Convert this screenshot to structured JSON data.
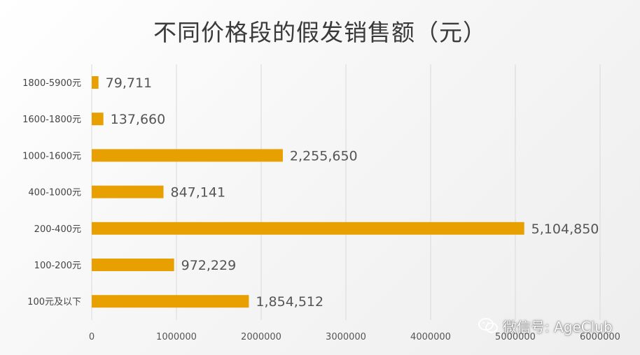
{
  "chart_data": {
    "type": "bar",
    "orientation": "horizontal",
    "title": "不同价格段的假发销售额（元）",
    "categories": [
      "1800-5900元",
      "1600-1800元",
      "1000-1600元",
      "400-1000元",
      "200-400元",
      "100-200元",
      "100元及以下"
    ],
    "values": [
      79711,
      137660,
      2255650,
      847141,
      5104850,
      972229,
      1854512
    ],
    "data_labels": [
      "79,711",
      "137,660",
      "2,255,650",
      "847,141",
      "5,104,850",
      "972,229",
      "1,854,512"
    ],
    "xlim": [
      0,
      6000000
    ],
    "x_ticks": [
      "0",
      "1000000",
      "2000000",
      "3000000",
      "4000000",
      "5000000",
      "6000000"
    ],
    "grid": "vertical",
    "bar_color": "#E8A000"
  },
  "watermark": {
    "text": "微信号: AgeClub",
    "icon": "wechat-icon"
  }
}
